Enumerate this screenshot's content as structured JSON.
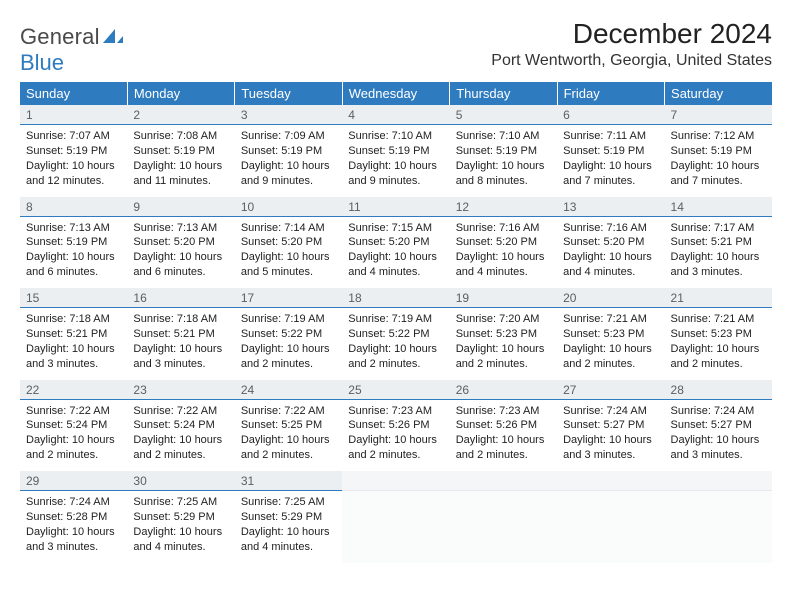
{
  "brand": {
    "word1": "General",
    "word2": "Blue",
    "word2_color": "#2f7bbf",
    "shape_color": "#2f7bbf"
  },
  "title": "December 2024",
  "location": "Port Wentworth, Georgia, United States",
  "colors": {
    "header_bg": "#2f7bbf",
    "header_text": "#ffffff",
    "daynum_bg": "#eceff1",
    "daynum_text": "#5a5f63",
    "daynum_border": "#2f7bbf",
    "body_text": "#222222"
  },
  "day_names": [
    "Sunday",
    "Monday",
    "Tuesday",
    "Wednesday",
    "Thursday",
    "Friday",
    "Saturday"
  ],
  "weeks": [
    [
      {
        "n": "1",
        "sunrise": "7:07 AM",
        "sunset": "5:19 PM",
        "daylight": "10 hours and 12 minutes."
      },
      {
        "n": "2",
        "sunrise": "7:08 AM",
        "sunset": "5:19 PM",
        "daylight": "10 hours and 11 minutes."
      },
      {
        "n": "3",
        "sunrise": "7:09 AM",
        "sunset": "5:19 PM",
        "daylight": "10 hours and 9 minutes."
      },
      {
        "n": "4",
        "sunrise": "7:10 AM",
        "sunset": "5:19 PM",
        "daylight": "10 hours and 9 minutes."
      },
      {
        "n": "5",
        "sunrise": "7:10 AM",
        "sunset": "5:19 PM",
        "daylight": "10 hours and 8 minutes."
      },
      {
        "n": "6",
        "sunrise": "7:11 AM",
        "sunset": "5:19 PM",
        "daylight": "10 hours and 7 minutes."
      },
      {
        "n": "7",
        "sunrise": "7:12 AM",
        "sunset": "5:19 PM",
        "daylight": "10 hours and 7 minutes."
      }
    ],
    [
      {
        "n": "8",
        "sunrise": "7:13 AM",
        "sunset": "5:19 PM",
        "daylight": "10 hours and 6 minutes."
      },
      {
        "n": "9",
        "sunrise": "7:13 AM",
        "sunset": "5:20 PM",
        "daylight": "10 hours and 6 minutes."
      },
      {
        "n": "10",
        "sunrise": "7:14 AM",
        "sunset": "5:20 PM",
        "daylight": "10 hours and 5 minutes."
      },
      {
        "n": "11",
        "sunrise": "7:15 AM",
        "sunset": "5:20 PM",
        "daylight": "10 hours and 4 minutes."
      },
      {
        "n": "12",
        "sunrise": "7:16 AM",
        "sunset": "5:20 PM",
        "daylight": "10 hours and 4 minutes."
      },
      {
        "n": "13",
        "sunrise": "7:16 AM",
        "sunset": "5:20 PM",
        "daylight": "10 hours and 4 minutes."
      },
      {
        "n": "14",
        "sunrise": "7:17 AM",
        "sunset": "5:21 PM",
        "daylight": "10 hours and 3 minutes."
      }
    ],
    [
      {
        "n": "15",
        "sunrise": "7:18 AM",
        "sunset": "5:21 PM",
        "daylight": "10 hours and 3 minutes."
      },
      {
        "n": "16",
        "sunrise": "7:18 AM",
        "sunset": "5:21 PM",
        "daylight": "10 hours and 3 minutes."
      },
      {
        "n": "17",
        "sunrise": "7:19 AM",
        "sunset": "5:22 PM",
        "daylight": "10 hours and 2 minutes."
      },
      {
        "n": "18",
        "sunrise": "7:19 AM",
        "sunset": "5:22 PM",
        "daylight": "10 hours and 2 minutes."
      },
      {
        "n": "19",
        "sunrise": "7:20 AM",
        "sunset": "5:23 PM",
        "daylight": "10 hours and 2 minutes."
      },
      {
        "n": "20",
        "sunrise": "7:21 AM",
        "sunset": "5:23 PM",
        "daylight": "10 hours and 2 minutes."
      },
      {
        "n": "21",
        "sunrise": "7:21 AM",
        "sunset": "5:23 PM",
        "daylight": "10 hours and 2 minutes."
      }
    ],
    [
      {
        "n": "22",
        "sunrise": "7:22 AM",
        "sunset": "5:24 PM",
        "daylight": "10 hours and 2 minutes."
      },
      {
        "n": "23",
        "sunrise": "7:22 AM",
        "sunset": "5:24 PM",
        "daylight": "10 hours and 2 minutes."
      },
      {
        "n": "24",
        "sunrise": "7:22 AM",
        "sunset": "5:25 PM",
        "daylight": "10 hours and 2 minutes."
      },
      {
        "n": "25",
        "sunrise": "7:23 AM",
        "sunset": "5:26 PM",
        "daylight": "10 hours and 2 minutes."
      },
      {
        "n": "26",
        "sunrise": "7:23 AM",
        "sunset": "5:26 PM",
        "daylight": "10 hours and 2 minutes."
      },
      {
        "n": "27",
        "sunrise": "7:24 AM",
        "sunset": "5:27 PM",
        "daylight": "10 hours and 3 minutes."
      },
      {
        "n": "28",
        "sunrise": "7:24 AM",
        "sunset": "5:27 PM",
        "daylight": "10 hours and 3 minutes."
      }
    ],
    [
      {
        "n": "29",
        "sunrise": "7:24 AM",
        "sunset": "5:28 PM",
        "daylight": "10 hours and 3 minutes."
      },
      {
        "n": "30",
        "sunrise": "7:25 AM",
        "sunset": "5:29 PM",
        "daylight": "10 hours and 4 minutes."
      },
      {
        "n": "31",
        "sunrise": "7:25 AM",
        "sunset": "5:29 PM",
        "daylight": "10 hours and 4 minutes."
      },
      null,
      null,
      null,
      null
    ]
  ],
  "labels": {
    "sunrise": "Sunrise:",
    "sunset": "Sunset:",
    "daylight": "Daylight:"
  }
}
